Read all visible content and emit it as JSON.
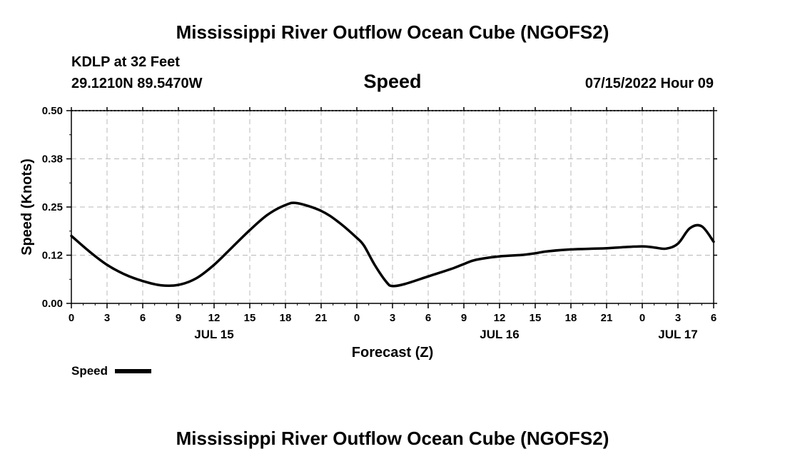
{
  "header": {
    "title": "Mississippi River Outflow Ocean Cube (NGOFS2)",
    "station": "KDLP at 32 Feet",
    "coordinates": "29.1210N  89.5470W",
    "heading": "Speed",
    "datetime": "07/15/2022 Hour 09"
  },
  "footer": {
    "title": "Mississippi River Outflow Ocean Cube (NGOFS2)"
  },
  "chart_data": {
    "type": "line",
    "title": "Speed",
    "xlabel": "Forecast (Z)",
    "ylabel": "Speed (Knots)",
    "xlim": [
      0,
      54
    ],
    "ylim": [
      0,
      0.5
    ],
    "yticks": [
      0,
      0.125,
      0.25,
      0.375,
      0.5
    ],
    "ytick_labels": [
      "0.00",
      "0.12",
      "0.25",
      "0.38",
      "0.50"
    ],
    "xticks": [
      0,
      3,
      6,
      9,
      12,
      15,
      18,
      21,
      24,
      27,
      30,
      33,
      36,
      39,
      42,
      45,
      48,
      51,
      54
    ],
    "xtick_labels": [
      "0",
      "3",
      "6",
      "9",
      "12",
      "15",
      "18",
      "21",
      "0",
      "3",
      "6",
      "9",
      "12",
      "15",
      "18",
      "21",
      "0",
      "3",
      "6"
    ],
    "date_labels": [
      {
        "x": 12,
        "label": "JUL 15"
      },
      {
        "x": 36,
        "label": "JUL 16"
      },
      {
        "x": 51,
        "label": "JUL 17"
      }
    ],
    "grid": true,
    "legend": {
      "position": "bottom-left",
      "label": "Speed"
    },
    "series": [
      {
        "name": "Speed",
        "color": "#000000",
        "x": [
          0,
          1.5,
          3,
          4.5,
          6,
          7.5,
          9,
          10.5,
          12,
          13.5,
          15,
          16.5,
          18,
          19,
          21,
          22.5,
          24,
          24.6,
          25.5,
          26.5,
          27,
          28,
          30,
          32,
          33,
          34,
          36,
          38,
          39,
          40,
          42,
          44,
          45,
          46,
          48,
          49,
          50,
          51,
          52,
          53,
          54
        ],
        "y": [
          0.175,
          0.135,
          0.1,
          0.075,
          0.058,
          0.047,
          0.048,
          0.065,
          0.1,
          0.145,
          0.19,
          0.23,
          0.255,
          0.26,
          0.24,
          0.21,
          0.17,
          0.15,
          0.1,
          0.055,
          0.045,
          0.05,
          0.07,
          0.09,
          0.102,
          0.113,
          0.122,
          0.126,
          0.13,
          0.135,
          0.14,
          0.142,
          0.143,
          0.145,
          0.148,
          0.145,
          0.142,
          0.155,
          0.195,
          0.2,
          0.16
        ]
      }
    ]
  }
}
